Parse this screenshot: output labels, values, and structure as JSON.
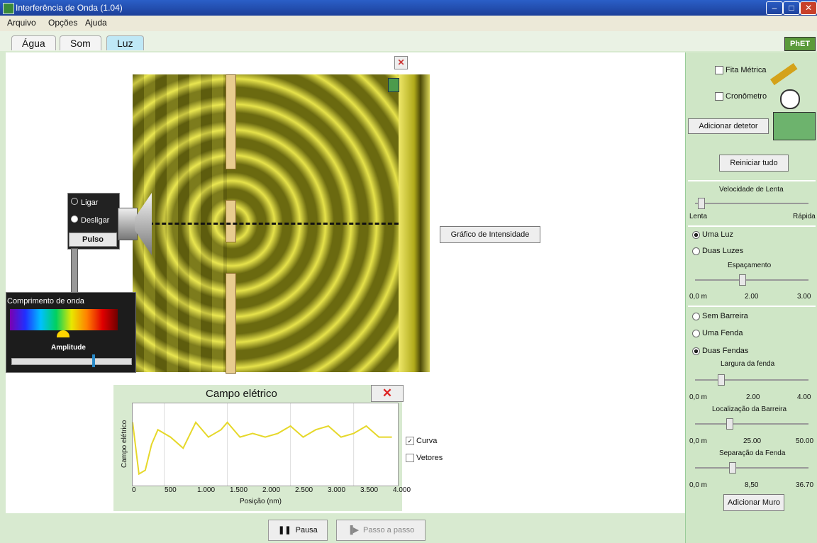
{
  "window": {
    "title": "Interferência de Onda (1.04)",
    "min": "–",
    "max": "□",
    "close": "✕"
  },
  "menu": [
    "Arquivo",
    "Opções",
    "Ajuda"
  ],
  "tabs": [
    {
      "label": "Água"
    },
    {
      "label": "Som"
    },
    {
      "label": "Luz",
      "active": true
    }
  ],
  "logo": "PhET",
  "lamp": {
    "options": [
      "Ligar",
      "Desligar"
    ],
    "selected": "Desligar",
    "pulse_label": "Pulso"
  },
  "wavelength_panel": {
    "label": "Comprimento de onda",
    "amplitude_label": "Amplitude",
    "amplitude": 0.7
  },
  "scene": {
    "intensity_button": "Gráfico de Intensidade",
    "close": "✕"
  },
  "chart_panel": {
    "title": "Campo elétrico",
    "close": "✕",
    "legend": [
      {
        "label": "Curva",
        "checked": true
      },
      {
        "label": "Vetores",
        "checked": false
      }
    ]
  },
  "chart_data": {
    "type": "line",
    "title": "Campo elétrico",
    "xlabel": "Posição (nm)",
    "ylabel": "Campo elétrico",
    "xticks": [
      "0",
      "500",
      "1.000",
      "1.500",
      "2.000",
      "2.500",
      "3.000",
      "3.500",
      "4.000"
    ],
    "x": [
      0,
      100,
      200,
      300,
      400,
      600,
      800,
      1000,
      1200,
      1400,
      1500,
      1700,
      1900,
      2100,
      2300,
      2500,
      2700,
      2900,
      3100,
      3300,
      3500,
      3700,
      3900,
      4100
    ],
    "y": [
      0.6,
      -0.8,
      -0.7,
      0.0,
      0.4,
      0.2,
      -0.1,
      0.6,
      0.2,
      0.4,
      0.6,
      0.2,
      0.3,
      0.2,
      0.3,
      0.5,
      0.2,
      0.4,
      0.5,
      0.2,
      0.3,
      0.5,
      0.2,
      0.2
    ],
    "color": "#e6d82a",
    "grid": true
  },
  "sidebar": {
    "measuring_tape": "Fita Métrica",
    "stopwatch": "Cronômetro",
    "add_detector": "Adicionar detetor",
    "reset": "Reiniciar tudo",
    "frequency": {
      "label": "Velocidade de Lenta",
      "min": "Lenta",
      "max": "Rápida"
    },
    "one_light": "Uma Luz",
    "two_lights": "Duas Luzes",
    "spacing_label": "Espaçamento",
    "spacing_ticks": [
      "0,0 m",
      "2.00",
      "3.00"
    ],
    "barrier_options": [
      "Sem Barreira",
      "Uma Fenda",
      "Duas Fendas"
    ],
    "barrier_selected": "Duas Fendas",
    "slit_width_label": "Largura da fenda",
    "slit_width_ticks": [
      "0,0 m",
      "2.00",
      "4.00"
    ],
    "barrier_location_label": "Localização da Barreira",
    "barrier_location_ticks": [
      "0,0 m",
      "25.00",
      "50.00"
    ],
    "slit_separation_label": "Separação da Fenda",
    "slit_separation_ticks": [
      "0,0 m",
      "8,50",
      "36.70"
    ],
    "add_wall": "Adicionar Muro"
  },
  "playback": {
    "pause": "Pausa",
    "step": "Passo a passo"
  }
}
